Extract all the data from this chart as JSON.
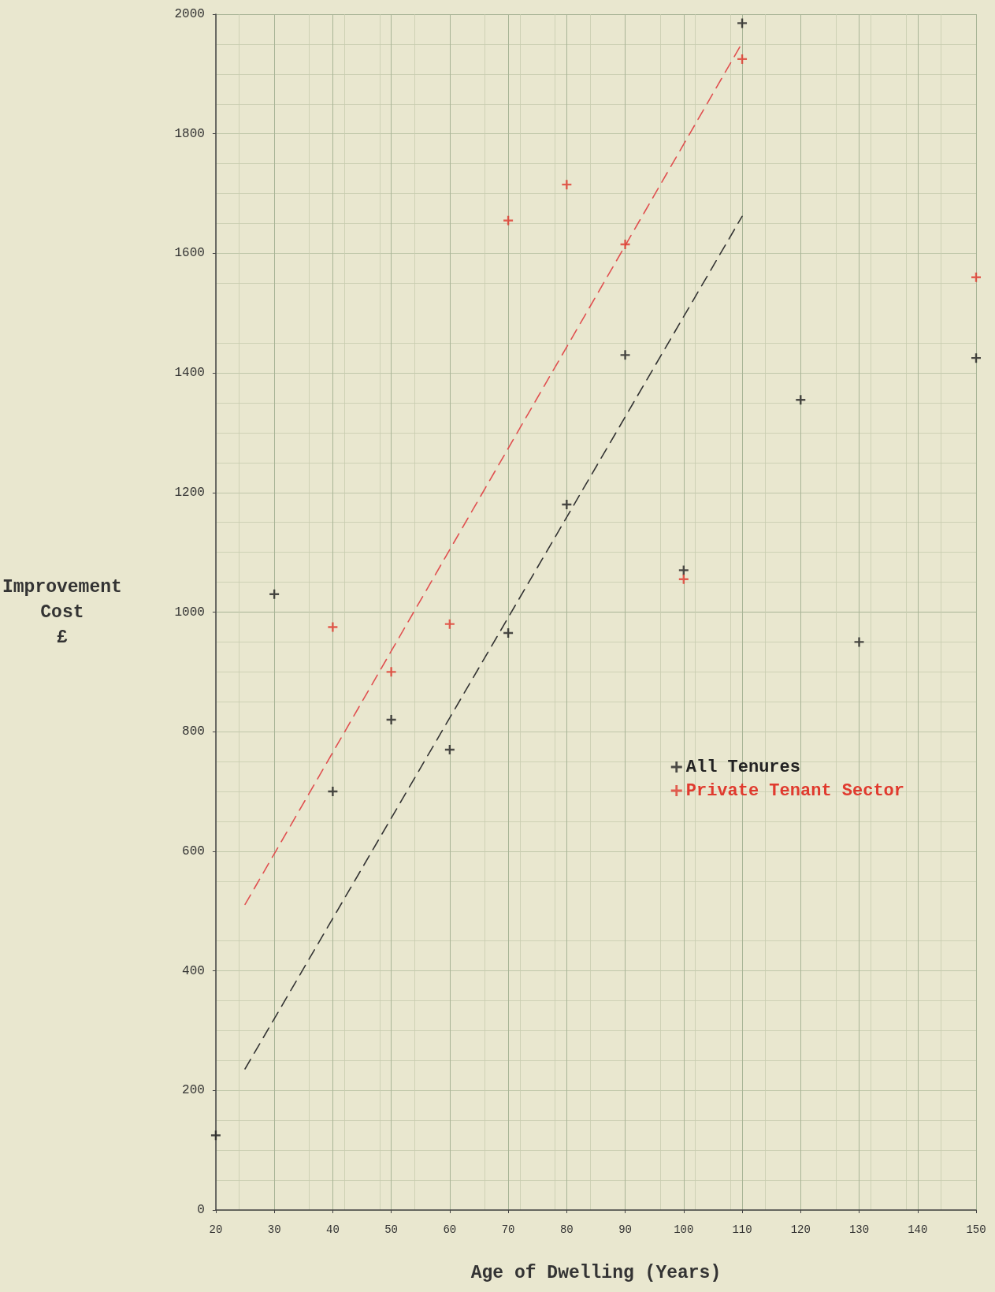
{
  "chart_data": {
    "type": "scatter",
    "xlabel": "Age of Dwelling (Years)",
    "ylabel": "Improvement\nCost\n£",
    "xlim": [
      20,
      150
    ],
    "xticks": [
      20,
      30,
      40,
      50,
      60,
      70,
      80,
      90,
      100,
      110,
      120,
      130,
      140,
      150
    ],
    "ylim": [
      0,
      2000
    ],
    "yticks": [
      0,
      200,
      400,
      600,
      800,
      1000,
      1200,
      1400,
      1600,
      1800,
      2000
    ],
    "grid": true,
    "legend": "bottom right",
    "marker": "cross",
    "series": [
      {
        "name": "All Tenures",
        "color": "#222222",
        "x": [
          20,
          30,
          40,
          50,
          60,
          70,
          80,
          90,
          100,
          110,
          120,
          130,
          150
        ],
        "values": [
          125,
          1030,
          700,
          820,
          770,
          965,
          1180,
          1430,
          1070,
          1985,
          1355,
          950,
          1425
        ]
      },
      {
        "name": "Private Tenant Sector",
        "color": "#e03a2e",
        "x": [
          40,
          50,
          60,
          70,
          80,
          90,
          100,
          110,
          150
        ],
        "values": [
          975,
          900,
          980,
          1655,
          1715,
          1615,
          1055,
          1925,
          1560
        ]
      },
      {
        "type": "line",
        "color": "#333333",
        "line_style": "dashed",
        "marker": "none",
        "x": [
          25,
          110
        ],
        "values": [
          236,
          1662
        ]
      },
      {
        "type": "line",
        "color": "#e05050",
        "line_style": "dashed",
        "marker": "none",
        "x": [
          25,
          110
        ],
        "values": [
          511,
          1952
        ]
      }
    ]
  }
}
